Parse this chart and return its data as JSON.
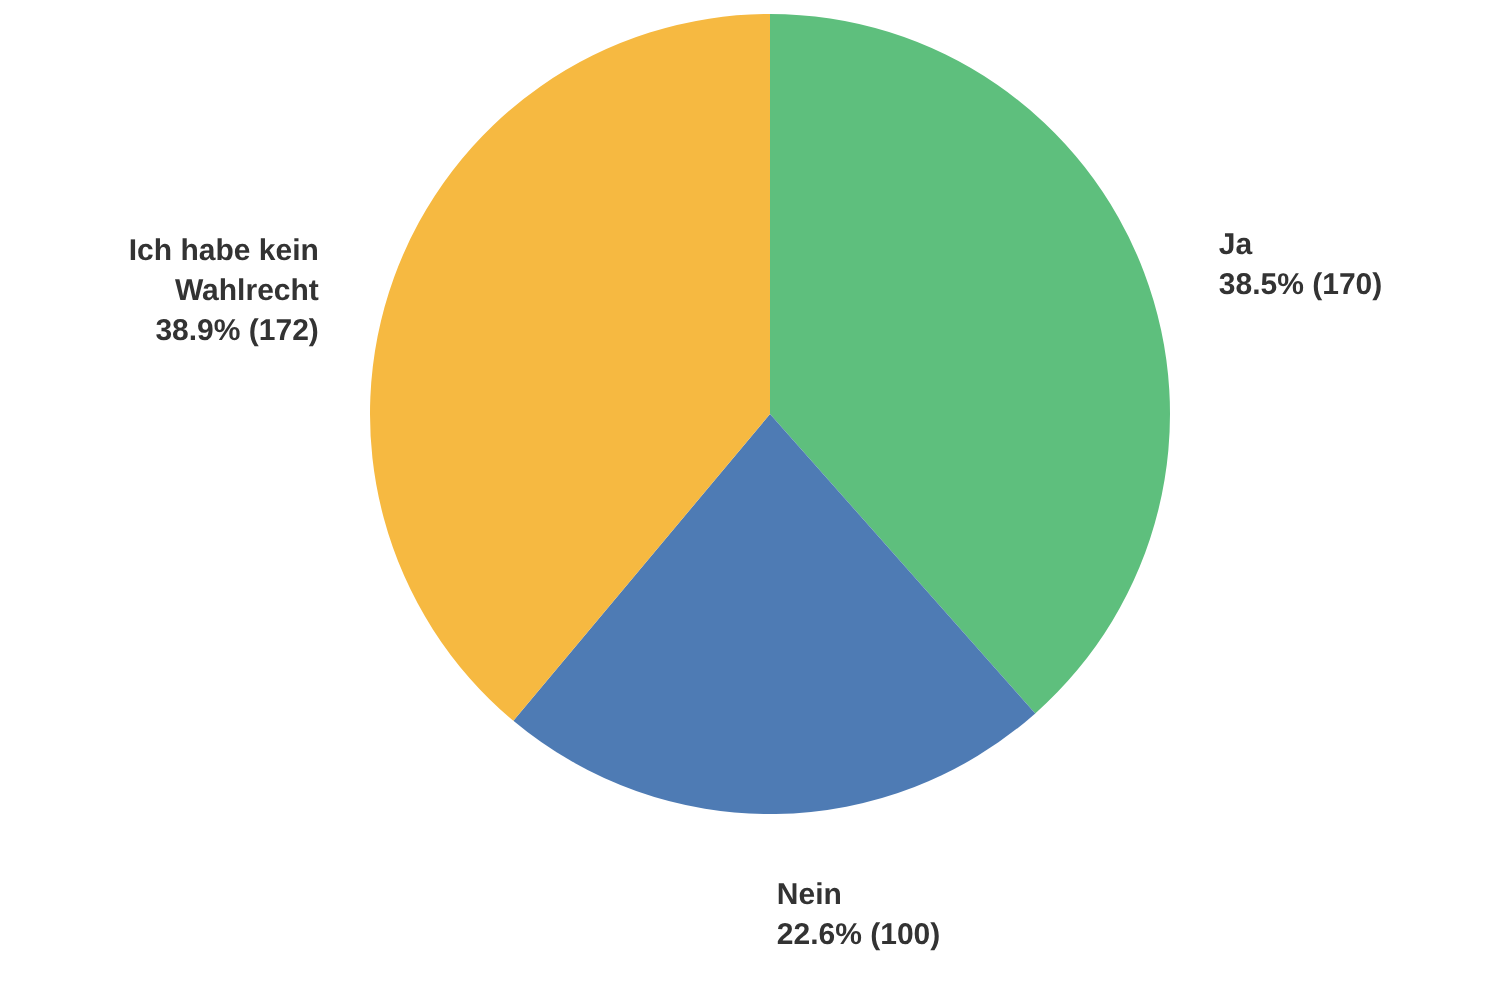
{
  "chart_data": {
    "type": "pie",
    "categories": [
      "Ja",
      "Nein",
      "Ich habe kein Wahlrecht"
    ],
    "values": [
      170,
      100,
      172
    ],
    "value_labels": [
      "38.5% (170)",
      "22.6% (100)",
      "38.9% (172)"
    ],
    "colors": [
      "#5ebf7d",
      "#4e7bb4",
      "#f6b941"
    ]
  }
}
